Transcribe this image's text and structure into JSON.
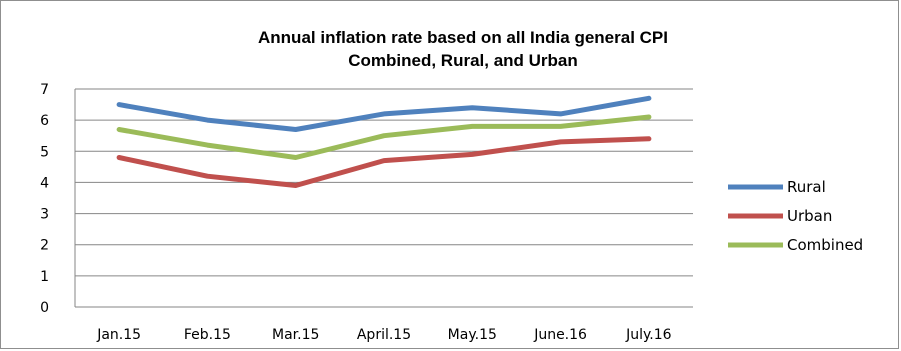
{
  "chart_data": {
    "type": "line",
    "title_lines": [
      "Annual inflation rate based on all India general CPI",
      "Combined, Rural, and Urban"
    ],
    "categories": [
      "Jan.15",
      "Feb.15",
      "Mar.15",
      "April.15",
      "May.15",
      "June.16",
      "July.16"
    ],
    "series": [
      {
        "name": "Rural",
        "color": "#4F81BD",
        "values": [
          6.5,
          6.0,
          5.7,
          6.2,
          6.4,
          6.2,
          6.7
        ]
      },
      {
        "name": "Urban",
        "color": "#C0504D",
        "values": [
          4.8,
          4.2,
          3.9,
          4.7,
          4.9,
          5.3,
          5.4
        ]
      },
      {
        "name": "Combined",
        "color": "#9BBB59",
        "values": [
          5.7,
          5.2,
          4.8,
          5.5,
          5.8,
          5.8,
          6.1
        ]
      }
    ],
    "ylim": [
      0,
      7
    ],
    "yticks": [
      "0",
      "1",
      "2",
      "3",
      "4",
      "5",
      "6",
      "7"
    ],
    "grid": true,
    "legend": "right"
  }
}
